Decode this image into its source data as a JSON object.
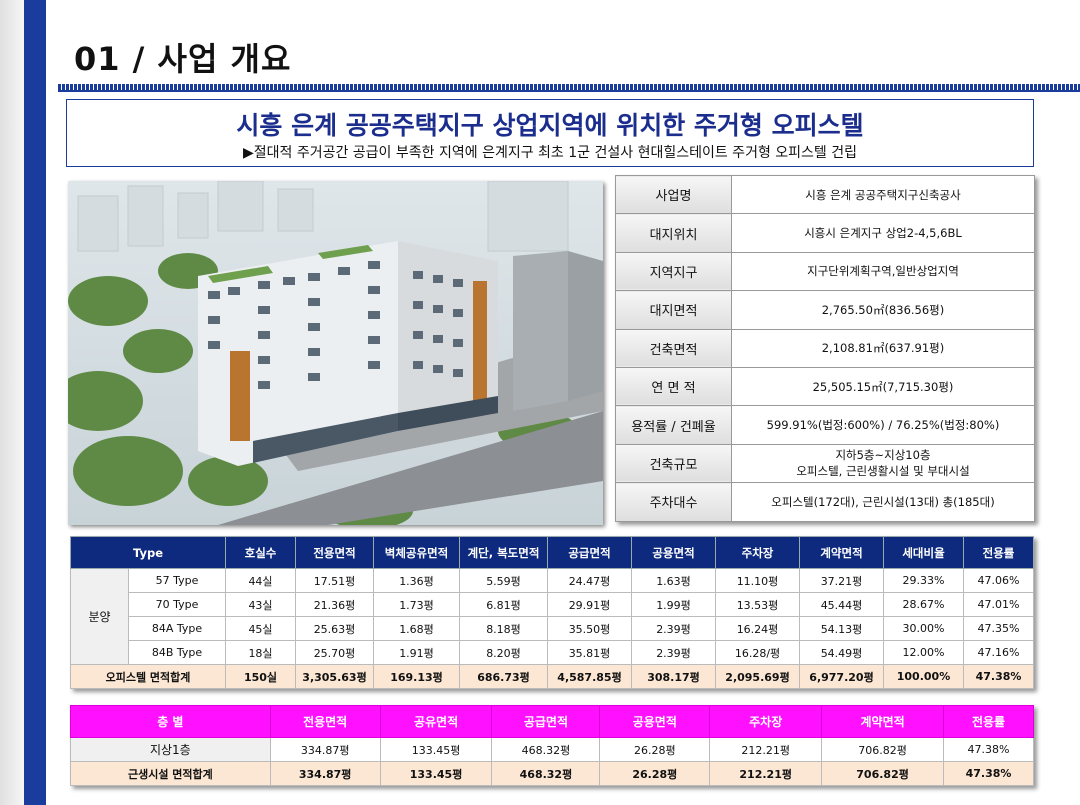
{
  "page_title": "01 / 사업 개요",
  "headline": "시흥 은계 공공주택지구 상업지역에 위치한 주거형 오피스텔",
  "subline": "▶절대적 주거공간 공급이 부족한 지역에 은계지구 최초 1군 건설사 현대힐스테이트 주거형 오피스텔 건립",
  "info": [
    {
      "k": "사업명",
      "v": "시흥 은계 공공주택지구신축공사"
    },
    {
      "k": "대지위치",
      "v": "시흥시 은계지구 상업2-4,5,6BL"
    },
    {
      "k": "지역지구",
      "v": "지구단위계획구역,일반상업지역"
    },
    {
      "k": "대지면적",
      "v": "2,765.50㎡(836.56평)"
    },
    {
      "k": "건축면적",
      "v": "2,108.81㎡(637.91평)"
    },
    {
      "k": "연 면 적",
      "v": "25,505.15㎡(7,715.30평)"
    },
    {
      "k": "용적률 / 건폐율",
      "v": "599.91%(법정:600%) / 76.25%(법정:80%)"
    },
    {
      "k": "건축규모",
      "v": "지하5층~지상10층",
      "v2": "오피스텔, 근린생활시설 및 부대시설"
    },
    {
      "k": "주차대수",
      "v": "오피스텔(172대), 근린시설(13대) 총(185대)"
    }
  ],
  "t1": {
    "headers": [
      "Type",
      "호실수",
      "전용면적",
      "벽체공유면적",
      "계단, 복도면적",
      "공급면적",
      "공용면적",
      "주차장",
      "계약면적",
      "세대비율",
      "전용률"
    ],
    "group": "분양",
    "rows": [
      [
        "57 Type",
        "44실",
        "17.51평",
        "1.36평",
        "5.59평",
        "24.47평",
        "1.63평",
        "11.10평",
        "37.21평",
        "29.33%",
        "47.06%"
      ],
      [
        "70 Type",
        "43실",
        "21.36평",
        "1.73평",
        "6.81평",
        "29.91평",
        "1.99평",
        "13.53평",
        "45.44평",
        "28.67%",
        "47.01%"
      ],
      [
        "84A Type",
        "45실",
        "25.63평",
        "1.68평",
        "8.18평",
        "35.50평",
        "2.39평",
        "16.24평",
        "54.13평",
        "30.00%",
        "47.35%"
      ],
      [
        "84B Type",
        "18실",
        "25.70평",
        "1.91평",
        "8.20평",
        "35.81평",
        "2.39평",
        "16.28/평",
        "54.49평",
        "12.00%",
        "47.16%"
      ]
    ],
    "sum": [
      "오피스텔 면적합계",
      "150실",
      "3,305.63평",
      "169.13평",
      "686.73평",
      "4,587.85평",
      "308.17평",
      "2,095.69평",
      "6,977.20평",
      "100.00%",
      "47.38%"
    ]
  },
  "t2": {
    "headers": [
      "층 별",
      "전용면적",
      "공유면적",
      "공급면적",
      "공용면적",
      "주차장",
      "계약면적",
      "전용률"
    ],
    "rows": [
      [
        "지상1층",
        "334.87평",
        "133.45평",
        "468.32평",
        "26.28평",
        "212.21평",
        "706.82평",
        "47.38%"
      ]
    ],
    "sum": [
      "근생시설 면적합계",
      "334.87평",
      "133.45평",
      "468.32평",
      "26.28평",
      "212.21평",
      "706.82평",
      "47.38%"
    ]
  },
  "colors": {
    "brand_blue": "#1a3c9c",
    "table_header": "#0e2a7e",
    "magenta_header": "#ff10ff",
    "sum_row": "#fce7d4"
  }
}
